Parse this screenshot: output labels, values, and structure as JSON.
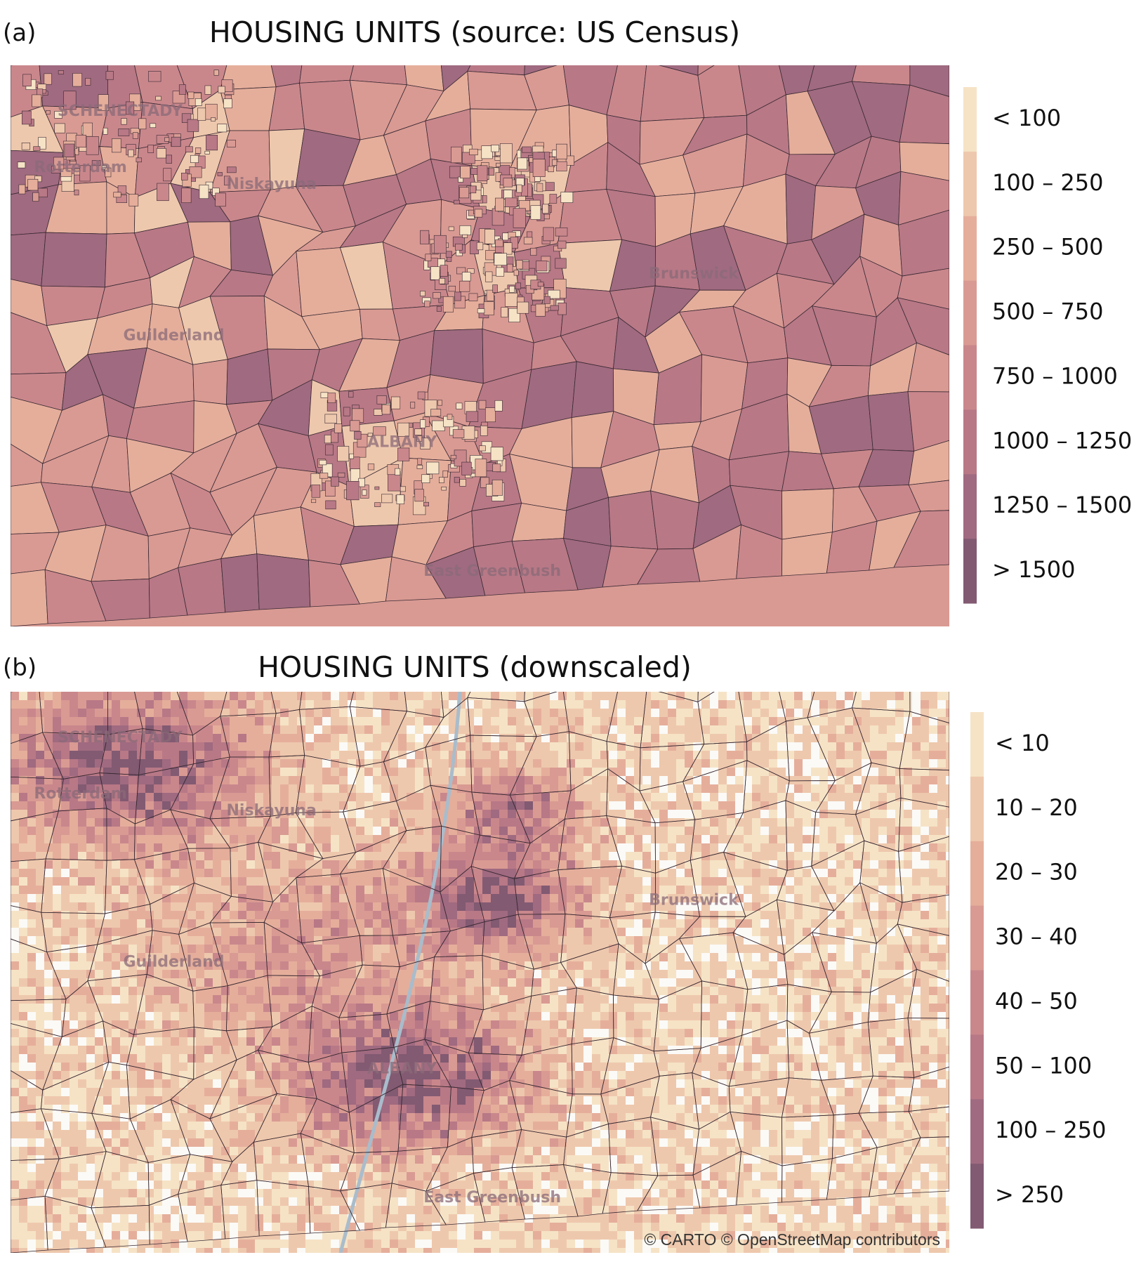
{
  "panels": [
    {
      "label": "(a)",
      "title": "HOUSING UNITS (source: US Census)",
      "legend": [
        {
          "label": "< 100",
          "color": "#f6e3c6"
        },
        {
          "label": "100 – 250",
          "color": "#eec8ad"
        },
        {
          "label": "250 – 500",
          "color": "#e5ae9b"
        },
        {
          "label": "500 – 750",
          "color": "#d99a93"
        },
        {
          "label": "750 – 1000",
          "color": "#c9878c"
        },
        {
          "label": "1000 – 1250",
          "color": "#b87886"
        },
        {
          "label": "1250 – 1500",
          "color": "#a06a80"
        },
        {
          "label": "> 1500",
          "color": "#825a72"
        }
      ],
      "places": [
        "SCHENECTADY",
        "Rotterdam",
        "Niskayuna",
        "Guilderland",
        "Brunswick",
        "ALBANY",
        "East Greenbush"
      ]
    },
    {
      "label": "(b)",
      "title": "HOUSING UNITS (downscaled)",
      "legend": [
        {
          "label": "< 10",
          "color": "#f6e3c6"
        },
        {
          "label": "10 – 20",
          "color": "#eec8ad"
        },
        {
          "label": "20 – 30",
          "color": "#e5ae9b"
        },
        {
          "label": "30 – 40",
          "color": "#d99a93"
        },
        {
          "label": "40 – 50",
          "color": "#c9878c"
        },
        {
          "label": "50 – 100",
          "color": "#b87886"
        },
        {
          "label": "100 – 250",
          "color": "#a06a80"
        },
        {
          "label": "> 250",
          "color": "#825a72"
        }
      ],
      "places": [
        "SCHENECTADY",
        "Rotterdam",
        "Niskayuna",
        "Guilderland",
        "Brunswick",
        "ALBANY",
        "East Greenbush"
      ],
      "attribution": "© CARTO © OpenStreetMap contributors"
    }
  ]
}
